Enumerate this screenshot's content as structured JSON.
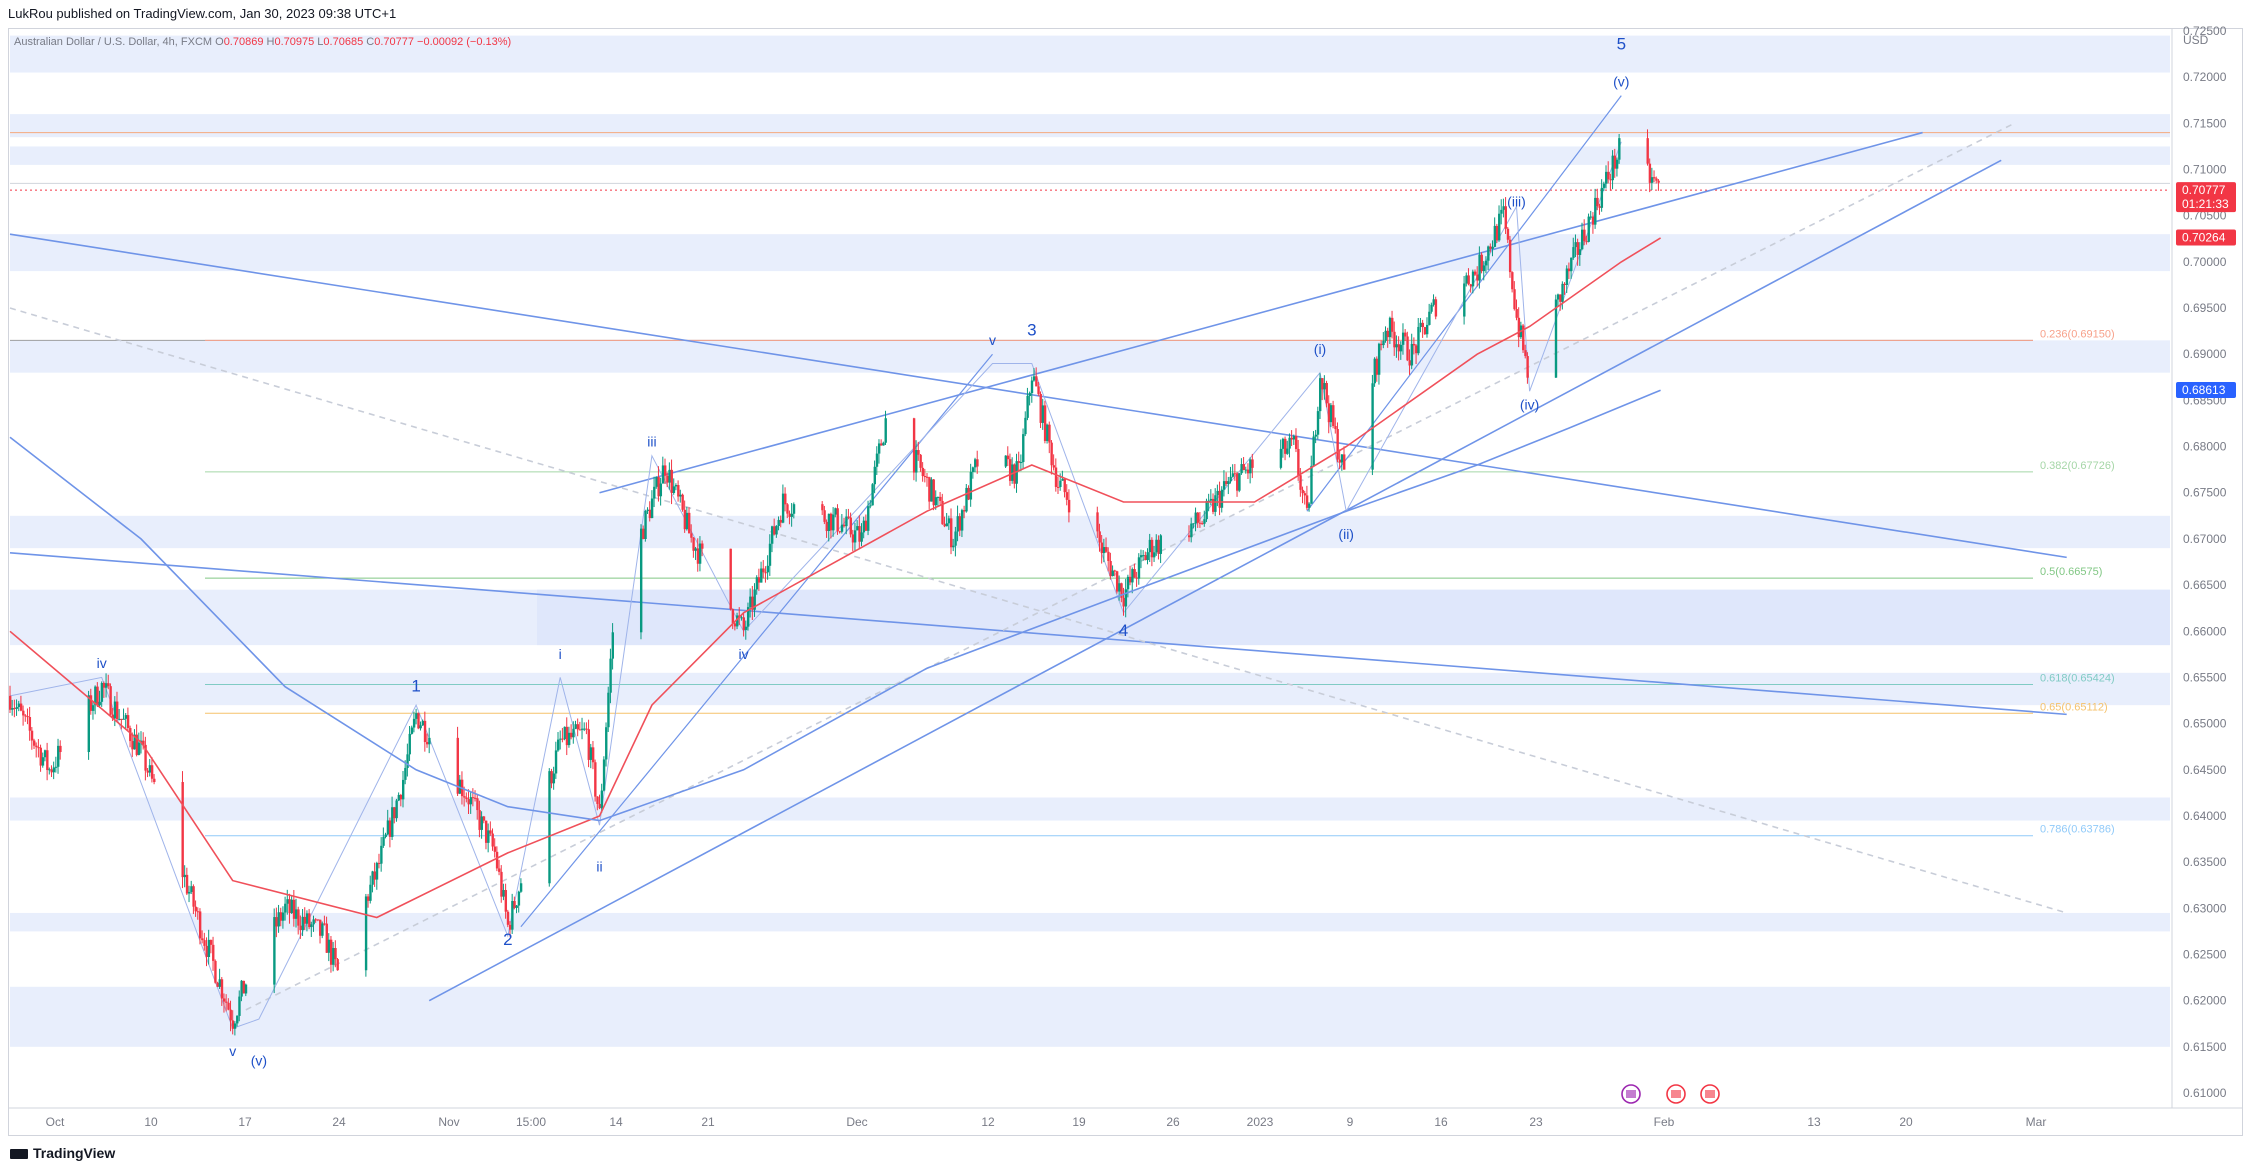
{
  "header": {
    "publisher": "LukRou published on TradingView.com, Jan 30, 2023 09:38 UTC+1"
  },
  "legend": {
    "symbol": "Australian Dollar / U.S. Dollar, 4h, FXCM",
    "o_label": "O",
    "o_value": "0.70869",
    "h_label": "H",
    "h_value": "0.70975",
    "l_label": "L",
    "l_value": "0.70685",
    "c_label": "C",
    "c_value": "0.70777",
    "change": "−0.00092 (−0.13%)"
  },
  "footer": {
    "brand": "TradingView"
  },
  "colors": {
    "bull": "#089981",
    "bear": "#f23645",
    "trend": "#6f94e8",
    "ema_red": "#f0505a",
    "zone": "#e8eefc",
    "fib": "#b2b5be",
    "blue_label": "#1e50c8"
  },
  "chart_data": {
    "type": "candlestick",
    "symbol": "AUDUSD",
    "timeframe": "4h",
    "currency": "USD",
    "ylim": [
      0.61,
      0.725
    ],
    "y_ticks": [
      "0.72500",
      "0.72000",
      "0.71500",
      "0.71000",
      "0.70500",
      "0.70000",
      "0.69500",
      "0.69000",
      "0.68500",
      "0.68000",
      "0.67500",
      "0.67000",
      "0.66500",
      "0.66000",
      "0.65500",
      "0.65000",
      "0.64500",
      "0.64000",
      "0.63500",
      "0.63000",
      "0.62500",
      "0.62000",
      "0.61500",
      "0.61000"
    ],
    "x_ticks": [
      "Oct",
      "10",
      "17",
      "24",
      "Nov",
      "15:00",
      "14",
      "21",
      "Dec",
      "12",
      "19",
      "26",
      "2023",
      "9",
      "16",
      "23",
      "Feb",
      "13",
      "20",
      "Mar"
    ],
    "price_badges": [
      {
        "value": "0.70777",
        "sub": "01:21:33",
        "color": "#f23645"
      },
      {
        "value": "0.70264",
        "color": "#f23645"
      },
      {
        "value": "0.68613",
        "color": "#2962ff"
      }
    ],
    "fib_levels": [
      {
        "label": "0.236(0.69150)",
        "value": 0.6915,
        "color": "#f7a18a"
      },
      {
        "label": "0.382(0.67726)",
        "value": 0.67726,
        "color": "#a5d6a7"
      },
      {
        "label": "0.5(0.66575)",
        "value": 0.66575,
        "color": "#81c784"
      },
      {
        "label": "0.618(0.65424)",
        "value": 0.65424,
        "color": "#80cbc4"
      },
      {
        "label": "0.65(0.65112)",
        "value": 0.65112,
        "color": "#f5c26b"
      },
      {
        "label": "0.786(0.63786)",
        "value": 0.63786,
        "color": "#90caf9"
      }
    ],
    "wave_labels": [
      {
        "text": "1",
        "x": "Oct 27",
        "y": 0.6535,
        "size": "large"
      },
      {
        "text": "2",
        "x": "Nov 3",
        "y": 0.626,
        "size": "large"
      },
      {
        "text": "3",
        "x": "Dec 13",
        "y": 0.692,
        "size": "large"
      },
      {
        "text": "4",
        "x": "Dec 20",
        "y": 0.6595,
        "size": "large"
      },
      {
        "text": "5",
        "x": "Jan 27",
        "y": 0.723,
        "size": "large"
      },
      {
        "text": "iv",
        "x": "Oct 3",
        "y": 0.656,
        "size": "small"
      },
      {
        "text": "v",
        "x": "Oct 13",
        "y": 0.614,
        "size": "small"
      },
      {
        "text": "(v)",
        "x": "Oct 15",
        "y": 0.613,
        "size": "small"
      },
      {
        "text": "i",
        "x": "Nov 7",
        "y": 0.657,
        "size": "small"
      },
      {
        "text": "ii",
        "x": "Nov 10",
        "y": 0.634,
        "size": "small"
      },
      {
        "text": "iii",
        "x": "Nov 14",
        "y": 0.68,
        "size": "small"
      },
      {
        "text": "iv",
        "x": "Nov 21",
        "y": 0.657,
        "size": "small"
      },
      {
        "text": "v",
        "x": "Dec 10",
        "y": 0.691,
        "size": "small"
      },
      {
        "text": "(i)",
        "x": "Jan 4",
        "y": 0.69,
        "size": "small"
      },
      {
        "text": "(ii)",
        "x": "Jan 6",
        "y": 0.67,
        "size": "small"
      },
      {
        "text": "(iii)",
        "x": "Jan 19",
        "y": 0.706,
        "size": "small"
      },
      {
        "text": "(iv)",
        "x": "Jan 20",
        "y": 0.684,
        "size": "small"
      },
      {
        "text": "(v)",
        "x": "Jan 27",
        "y": 0.719,
        "size": "small"
      }
    ],
    "series": [
      {
        "name": "AUDUSD",
        "points": [
          [
            "Sep 26",
            0.653
          ],
          [
            "Sep 29",
            0.645
          ],
          [
            "Oct 3",
            0.654
          ],
          [
            "Oct 6",
            0.647
          ],
          [
            "Oct 8",
            0.639
          ],
          [
            "Oct 11",
            0.626
          ],
          [
            "Oct 13",
            0.618
          ],
          [
            "Oct 14",
            0.622
          ],
          [
            "Oct 17",
            0.63
          ],
          [
            "Oct 20",
            0.627
          ],
          [
            "Oct 21",
            0.623
          ],
          [
            "Oct 24",
            0.634
          ],
          [
            "Oct 26",
            0.644
          ],
          [
            "Oct 27",
            0.651
          ],
          [
            "Oct 31",
            0.642
          ],
          [
            "Nov 2",
            0.636
          ],
          [
            "Nov 3",
            0.628
          ],
          [
            "Nov 7",
            0.648
          ],
          [
            "Nov 9",
            0.649
          ],
          [
            "Nov 10",
            0.64
          ],
          [
            "Nov 11",
            0.66
          ],
          [
            "Nov 13",
            0.67
          ],
          [
            "Nov 15",
            0.678
          ],
          [
            "Nov 17",
            0.67
          ],
          [
            "Nov 21",
            0.66
          ],
          [
            "Nov 24",
            0.674
          ],
          [
            "Nov 28",
            0.672
          ],
          [
            "Nov 30",
            0.67
          ],
          [
            "Dec 2",
            0.684
          ],
          [
            "Dec 5",
            0.676
          ],
          [
            "Dec 7",
            0.67
          ],
          [
            "Dec 9",
            0.679
          ],
          [
            "Dec 12",
            0.677
          ],
          [
            "Dec 13",
            0.688
          ],
          [
            "Dec 15",
            0.676
          ],
          [
            "Dec 18",
            0.67
          ],
          [
            "Dec 20",
            0.664
          ],
          [
            "Dec 22",
            0.669
          ],
          [
            "Dec 26",
            0.672
          ],
          [
            "Dec 28",
            0.676
          ],
          [
            "Dec 30",
            0.678
          ],
          [
            "Jan 2",
            0.68
          ],
          [
            "Jan 3",
            0.672
          ],
          [
            "Jan 4",
            0.688
          ],
          [
            "Jan 6",
            0.676
          ],
          [
            "Jan 9",
            0.693
          ],
          [
            "Jan 11",
            0.69
          ],
          [
            "Jan 13",
            0.696
          ],
          [
            "Jan 16",
            0.699
          ],
          [
            "Jan 18",
            0.705
          ],
          [
            "Jan 19",
            0.694
          ],
          [
            "Jan 20",
            0.687
          ],
          [
            "Jan 23",
            0.699
          ],
          [
            "Jan 25",
            0.706
          ],
          [
            "Jan 27",
            0.7125
          ],
          [
            "Jan 30",
            0.7078
          ]
        ]
      },
      {
        "name": "EMA-fast (red)",
        "points": [
          [
            "Sep 26",
            0.66
          ],
          [
            "Oct 6",
            0.648
          ],
          [
            "Oct 13",
            0.633
          ],
          [
            "Oct 24",
            0.629
          ],
          [
            "Nov 3",
            0.636
          ],
          [
            "Nov 10",
            0.64
          ],
          [
            "Nov 14",
            0.652
          ],
          [
            "Nov 21",
            0.662
          ],
          [
            "Dec 5",
            0.673
          ],
          [
            "Dec 13",
            0.678
          ],
          [
            "Dec 20",
            0.674
          ],
          [
            "Dec 30",
            0.674
          ],
          [
            "Jan 6",
            0.68
          ],
          [
            "Jan 16",
            0.69
          ],
          [
            "Jan 20",
            0.693
          ],
          [
            "Jan 27",
            0.7
          ],
          [
            "Jan 30",
            0.7026
          ]
        ]
      },
      {
        "name": "MA-slow (blue)",
        "points": [
          [
            "Sep 26",
            0.681
          ],
          [
            "Oct 6",
            0.67
          ],
          [
            "Oct 17",
            0.654
          ],
          [
            "Oct 27",
            0.645
          ],
          [
            "Nov 3",
            0.641
          ],
          [
            "Nov 10",
            0.6395
          ],
          [
            "Nov 21",
            0.645
          ],
          [
            "Dec 5",
            0.656
          ],
          [
            "Dec 20",
            0.664
          ],
          [
            "Jan 6",
            0.673
          ],
          [
            "Jan 16",
            0.678
          ],
          [
            "Jan 23",
            0.682
          ],
          [
            "Jan 30",
            0.6861
          ]
        ]
      }
    ]
  }
}
